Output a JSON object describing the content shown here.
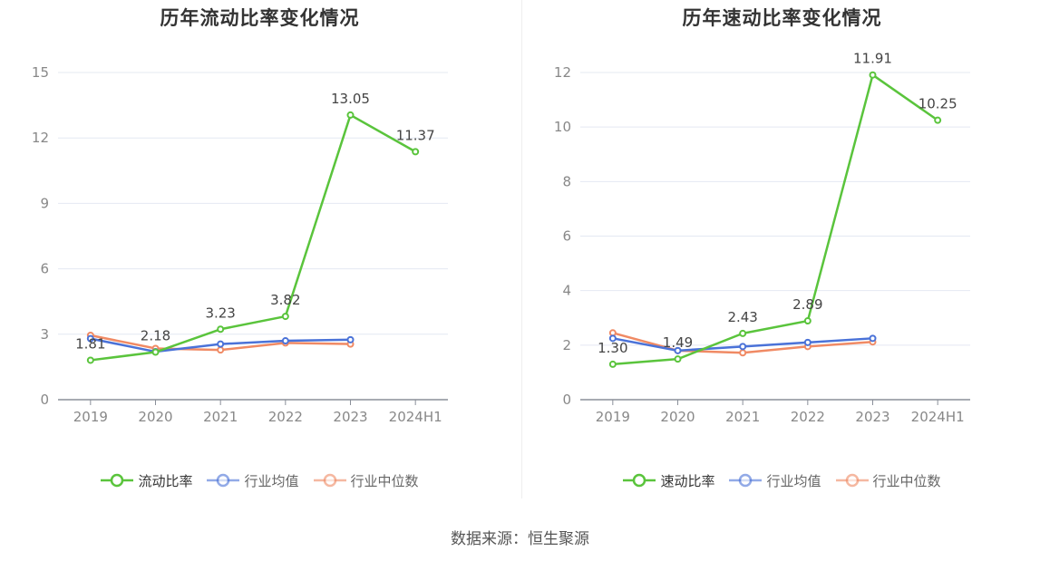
{
  "chart_data": [
    {
      "type": "line",
      "title": "历年流动比率变化情况",
      "categories": [
        "2019",
        "2020",
        "2021",
        "2022",
        "2023",
        "2024H1"
      ],
      "ylim": [
        0,
        15
      ],
      "yticks": [
        "0",
        "3",
        "6",
        "9",
        "12",
        "15"
      ],
      "grid": true,
      "legend_position": "bottom",
      "series": [
        {
          "name": "流动比率",
          "color": "#5ac43c",
          "values": [
            1.81,
            2.18,
            3.23,
            3.82,
            13.05,
            11.37
          ],
          "labels": [
            "1.81",
            "2.18",
            "3.23",
            "3.82",
            "13.05",
            "11.37"
          ]
        },
        {
          "name": "行业均值",
          "color": "#4a72d8",
          "values": [
            2.8,
            2.2,
            2.55,
            2.7,
            2.75,
            null
          ]
        },
        {
          "name": "行业中位数",
          "color": "#f08a64",
          "values": [
            2.95,
            2.35,
            2.28,
            2.6,
            2.55,
            null
          ]
        }
      ]
    },
    {
      "type": "line",
      "title": "历年速动比率变化情况",
      "categories": [
        "2019",
        "2020",
        "2021",
        "2022",
        "2023",
        "2024H1"
      ],
      "ylim": [
        0,
        12
      ],
      "yticks": [
        "0",
        "2",
        "4",
        "6",
        "8",
        "10",
        "12"
      ],
      "grid": true,
      "legend_position": "bottom",
      "series": [
        {
          "name": "速动比率",
          "color": "#5ac43c",
          "values": [
            1.3,
            1.49,
            2.43,
            2.89,
            11.91,
            10.25
          ],
          "labels": [
            "1.30",
            "1.49",
            "2.43",
            "2.89",
            "11.91",
            "10.25"
          ]
        },
        {
          "name": "行业均值",
          "color": "#4a72d8",
          "values": [
            2.25,
            1.8,
            1.95,
            2.1,
            2.25,
            null
          ]
        },
        {
          "name": "行业中位数",
          "color": "#f08a64",
          "values": [
            2.45,
            1.8,
            1.72,
            1.95,
            2.12,
            null
          ]
        }
      ]
    }
  ],
  "footer": {
    "source": "数据来源：恒生聚源"
  }
}
